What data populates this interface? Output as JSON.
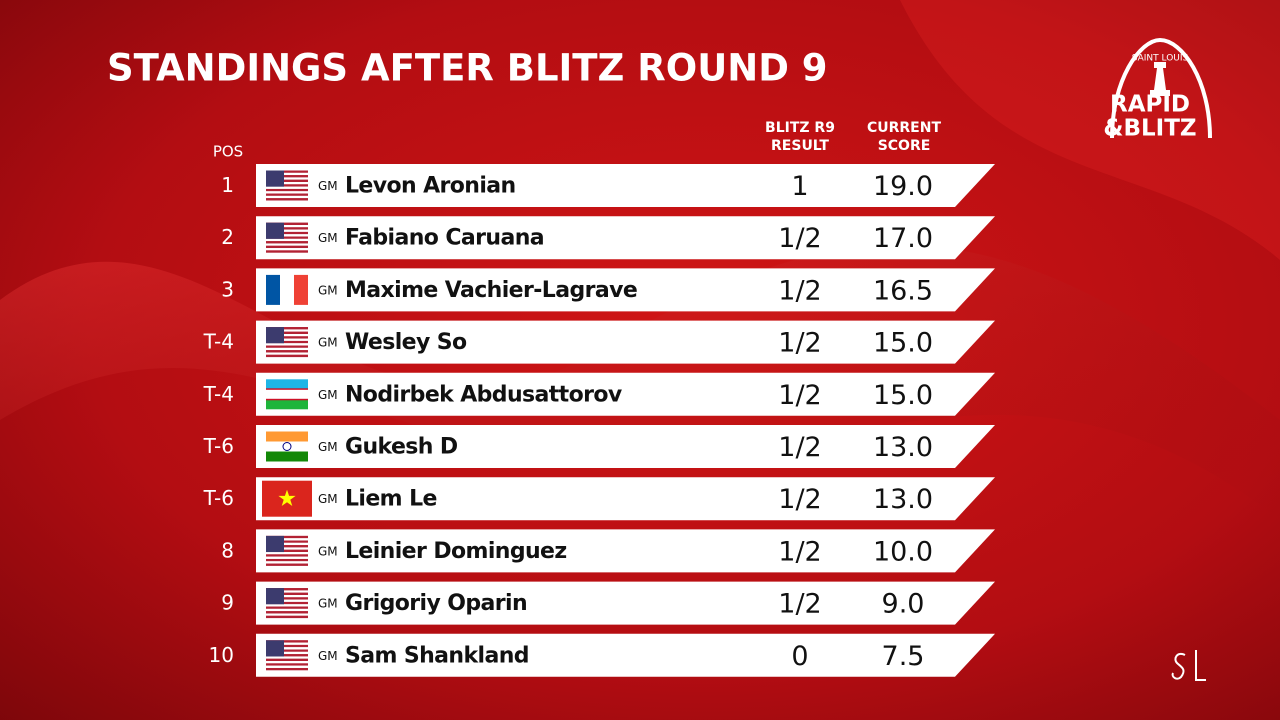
{
  "header": {
    "title": "STANDINGS AFTER BLITZ ROUND 9"
  },
  "logo": {
    "arc_text": "SAINT LOUIS",
    "line1": "RAPID",
    "line2": "&BLITZ"
  },
  "table": {
    "columns": {
      "pos": "POS",
      "result": [
        "BLITZ R9",
        "RESULT"
      ],
      "score": [
        "CURRENT",
        "SCORE"
      ]
    },
    "rows": [
      {
        "pos": "1",
        "title": "GM",
        "name": "Levon Aronian",
        "result": "1",
        "score": "19.0"
      },
      {
        "pos": "2",
        "title": "GM",
        "name": "Fabiano Caruana",
        "result": "1/2",
        "score": "17.0"
      },
      {
        "pos": "3",
        "title": "GM",
        "name": "Maxime Vachier-Lagrave",
        "result": "1/2",
        "score": "16.5"
      },
      {
        "pos": "T-4",
        "title": "GM",
        "name": "Wesley So",
        "result": "1/2",
        "score": "15.0"
      },
      {
        "pos": "T-4",
        "title": "GM",
        "name": "Nodirbek Abdusattorov",
        "result": "1/2",
        "score": "15.0"
      },
      {
        "pos": "T-6",
        "title": "GM",
        "name": "Gukesh D",
        "result": "1/2",
        "score": "13.0"
      },
      {
        "pos": "T-6",
        "title": "GM",
        "name": "Liem Le",
        "result": "1/2",
        "score": "13.0"
      },
      {
        "pos": "8",
        "title": "GM",
        "name": "Leinier Dominguez",
        "result": "1/2",
        "score": "10.0"
      },
      {
        "pos": "9",
        "title": "GM",
        "name": "Grigoriy Oparin",
        "result": "1/2",
        "score": "9.0"
      },
      {
        "pos": "10",
        "title": "GM",
        "name": "Sam Shankland",
        "result": "0",
        "score": "7.5"
      }
    ]
  }
}
